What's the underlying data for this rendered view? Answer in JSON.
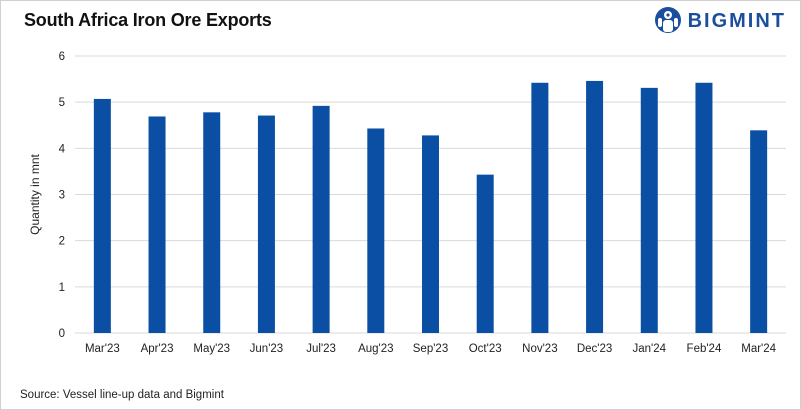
{
  "header": {
    "title": "South Africa Iron Ore Exports",
    "brand": "BIGMINT",
    "brand_color": "#1b4f9c",
    "logo_icon": "bigmint-mascot-icon"
  },
  "footer": {
    "source": "Source: Vessel line-up data and Bigmint"
  },
  "chart_data": {
    "type": "bar",
    "title": "South Africa Iron Ore Exports",
    "xlabel": "",
    "ylabel": "Quantity in mnt",
    "categories": [
      "Mar'23",
      "Apr'23",
      "May'23",
      "Jun'23",
      "Jul'23",
      "Aug'23",
      "Sep'23",
      "Oct'23",
      "Nov'23",
      "Dec'23",
      "Jan'24",
      "Feb'24",
      "Mar'24"
    ],
    "values": [
      5.07,
      4.69,
      4.78,
      4.71,
      4.92,
      4.43,
      4.28,
      3.43,
      5.42,
      5.46,
      5.31,
      5.42,
      4.39
    ],
    "ylim": [
      0,
      6
    ],
    "yticks": [
      0,
      1,
      2,
      3,
      4,
      5,
      6
    ],
    "grid": true,
    "bar_color": "#0a4fa3",
    "grid_color": "#d9d9d9"
  }
}
